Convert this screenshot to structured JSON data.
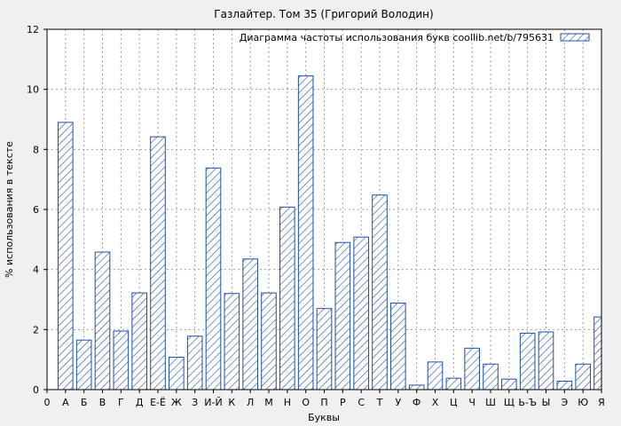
{
  "chart_data": {
    "type": "bar",
    "title": "Газлайтер. Том 35 (Григорий Володин)",
    "xlabel": "Буквы",
    "ylabel": "% использования в тексте",
    "ylim": [
      0,
      12
    ],
    "yticks": [
      "0",
      "2",
      "4",
      "6",
      "8",
      "10",
      "12"
    ],
    "grid": true,
    "legend_position": "top-right",
    "series": [
      {
        "name": "Диаграмма частоты использования букв coollib.net/b/795631",
        "color": "#1f4fa8",
        "pattern": "diagonal-hatch"
      }
    ],
    "categories": [
      "0",
      "А",
      "Б",
      "В",
      "Г",
      "Д",
      "Е-Ё",
      "Ж",
      "З",
      "И-Й",
      "К",
      "Л",
      "М",
      "Н",
      "О",
      "П",
      "Р",
      "С",
      "Т",
      "У",
      "Ф",
      "Х",
      "Ц",
      "Ч",
      "Ш",
      "Щ",
      "Ь-Ъ",
      "Ы",
      "Э",
      "Ю",
      "Я"
    ],
    "values": [
      null,
      8.9,
      1.65,
      4.58,
      1.95,
      3.22,
      8.42,
      1.08,
      1.78,
      7.38,
      3.2,
      4.35,
      3.22,
      6.08,
      10.45,
      2.7,
      4.9,
      5.08,
      6.48,
      2.88,
      0.15,
      0.92,
      0.38,
      1.38,
      0.85,
      0.35,
      1.88,
      1.92,
      0.28,
      0.85,
      2.42
    ]
  }
}
